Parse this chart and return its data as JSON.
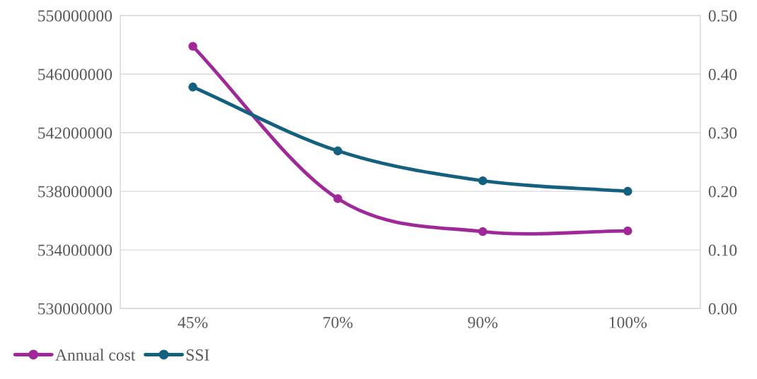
{
  "chart_data": {
    "type": "line",
    "categories": [
      "45%",
      "70%",
      "90%",
      "100%"
    ],
    "series": [
      {
        "name": "Annual cost",
        "color": "#a0299a",
        "values": [
          547900000,
          537500000,
          535250000,
          535300000
        ]
      },
      {
        "name": "SSI",
        "color": "#14607f",
        "axis": "y2",
        "values": [
          0.378,
          0.269,
          0.218,
          0.2
        ]
      }
    ],
    "ylim": [
      530000000,
      550000000
    ],
    "yticks": [
      530000000,
      534000000,
      538000000,
      542000000,
      546000000,
      550000000
    ],
    "y2lim": [
      0,
      0.5
    ],
    "y2ticks": [
      {
        "value": 0,
        "label": "0.00"
      },
      {
        "value": 0.1,
        "label": "0.10"
      },
      {
        "value": 0.2,
        "label": "0.20"
      },
      {
        "value": 0.3,
        "label": "0.30"
      },
      {
        "value": 0.4,
        "label": "0.40"
      },
      {
        "value": 0.5,
        "label": "0.50"
      }
    ],
    "grid": "y",
    "legend": "bottom left",
    "marker": "circle",
    "line_style": "solid"
  }
}
